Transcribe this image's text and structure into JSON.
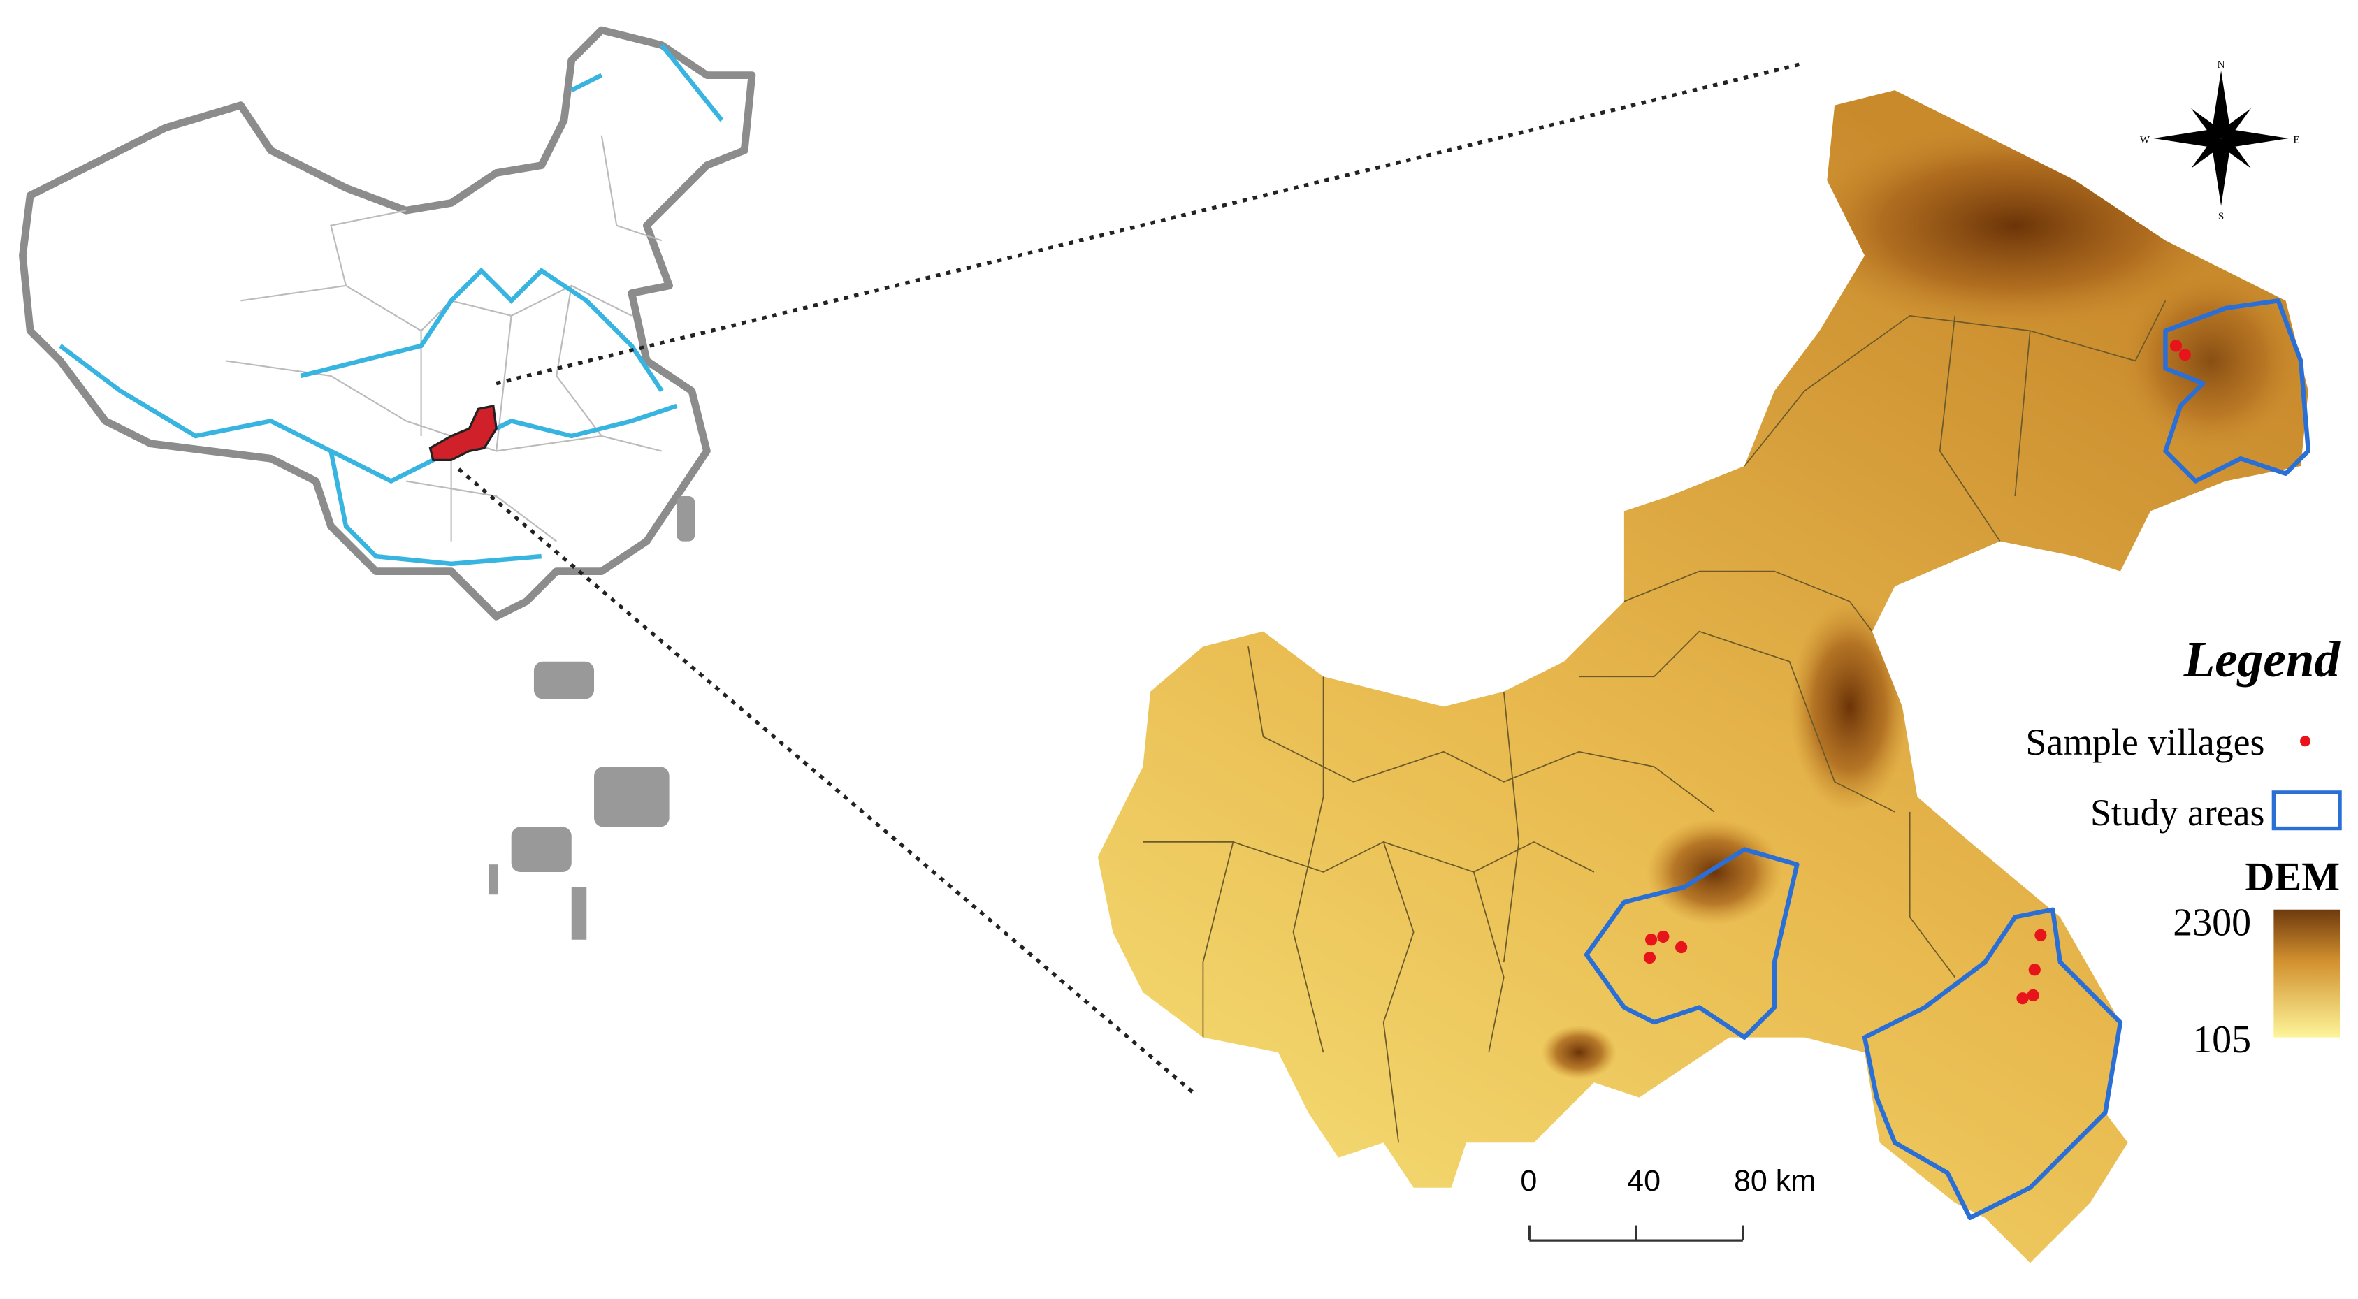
{
  "legend": {
    "title": "Legend",
    "items": [
      {
        "label": "Sample villages"
      },
      {
        "label": "Study areas"
      }
    ]
  },
  "dem": {
    "title": "DEM",
    "max": 2300,
    "min": 105
  },
  "scale_bar": {
    "ticks": [
      0,
      40,
      {
        "value": 80,
        "label": "80 km"
      }
    ]
  },
  "compass": {
    "n": "N",
    "e": "E",
    "s": "S",
    "w": "W"
  }
}
